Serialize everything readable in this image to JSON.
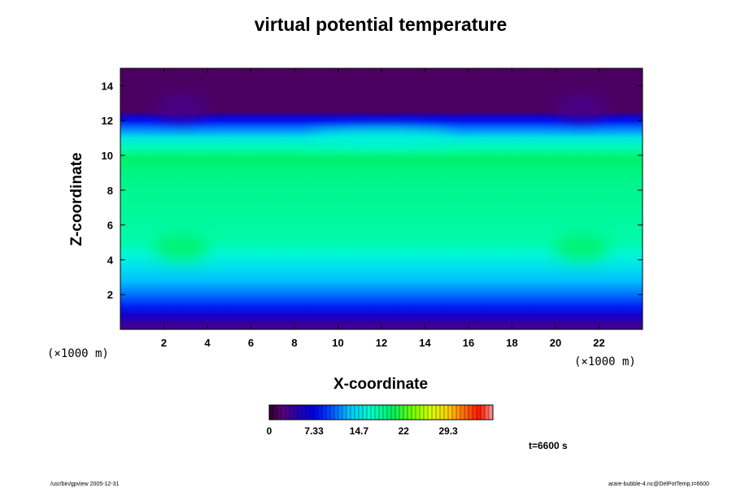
{
  "chart_data": {
    "type": "heatmap",
    "title": "virtual potential temperature",
    "xlabel": "X-coordinate",
    "ylabel": "Z-coordinate",
    "x_unit": "(×1000 m)",
    "y_unit": "(×1000 m)",
    "xlim": [
      0,
      24
    ],
    "ylim": [
      0,
      15
    ],
    "x_ticks": [
      "2",
      "4",
      "6",
      "8",
      "10",
      "12",
      "14",
      "16",
      "18",
      "20",
      "22"
    ],
    "y_ticks": [
      "2",
      "4",
      "6",
      "8",
      "10",
      "12",
      "14"
    ],
    "x_tick_values": [
      2,
      4,
      6,
      8,
      10,
      12,
      14,
      16,
      18,
      20,
      22
    ],
    "y_tick_values": [
      2,
      4,
      6,
      8,
      10,
      12,
      14
    ],
    "colorbar": {
      "ticks": [
        "0",
        "7.33",
        "14.7",
        "22",
        "29.3"
      ],
      "tick_values": [
        0,
        7.33,
        14.7,
        22,
        29.3
      ],
      "range": [
        0,
        36.6
      ]
    },
    "z_profile": [
      {
        "z": 0.0,
        "v": 3
      },
      {
        "z": 0.4,
        "v": 4
      },
      {
        "z": 0.8,
        "v": 6
      },
      {
        "z": 1.3,
        "v": 8.5
      },
      {
        "z": 2.0,
        "v": 11
      },
      {
        "z": 2.8,
        "v": 13
      },
      {
        "z": 3.5,
        "v": 14.5
      },
      {
        "z": 4.3,
        "v": 16
      },
      {
        "z": 5.0,
        "v": 17.6
      },
      {
        "z": 6.0,
        "v": 18
      },
      {
        "z": 7.0,
        "v": 18.3
      },
      {
        "z": 8.0,
        "v": 18.6
      },
      {
        "z": 9.0,
        "v": 19
      },
      {
        "z": 9.8,
        "v": 19.8
      },
      {
        "z": 10.4,
        "v": 17.5
      },
      {
        "z": 11.0,
        "v": 15
      },
      {
        "z": 11.6,
        "v": 11
      },
      {
        "z": 12.0,
        "v": 8
      },
      {
        "z": 12.3,
        "v": 5
      },
      {
        "z": 12.5,
        "v": 1.5
      },
      {
        "z": 15.0,
        "v": 1.5
      }
    ],
    "features": [
      {
        "x": 2.8,
        "z": 4.7,
        "v": 20
      },
      {
        "x": 21.2,
        "z": 4.7,
        "v": 20
      },
      {
        "x": 2.8,
        "z": 12.8,
        "v": 3
      },
      {
        "x": 21.2,
        "z": 12.8,
        "v": 3
      },
      {
        "x": 12.0,
        "z": 11.0,
        "v": 16
      }
    ],
    "time_label": "t=6600 s"
  },
  "footer": {
    "left": "/usr/bin/gpview 2005-12-31",
    "right": "arare-bubble-4.nc@DelPotTemp,t=6600"
  }
}
